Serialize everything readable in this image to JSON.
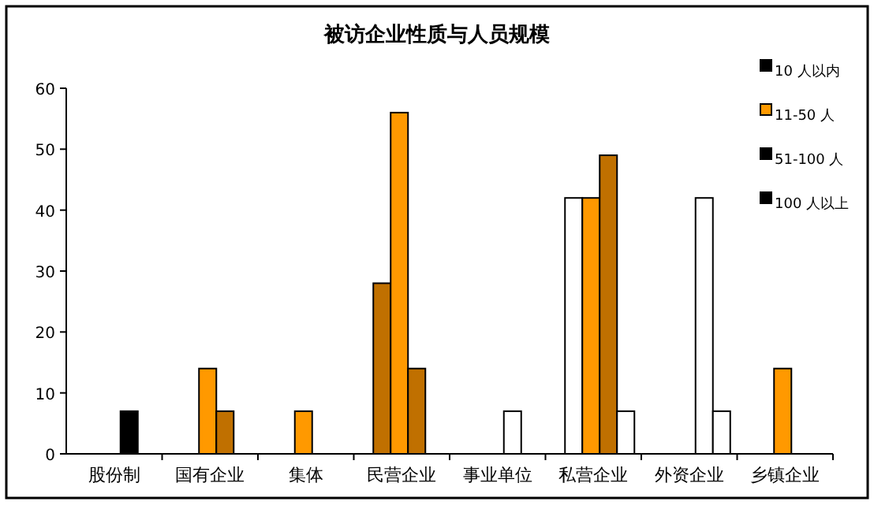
{
  "chart_data": {
    "type": "bar",
    "title": "被访企业性质与人员规模",
    "categories": [
      "股份制",
      "国有企业",
      "集体",
      "民营企业",
      "事业单位",
      "私营企业",
      "外资企业",
      "乡镇企业"
    ],
    "series": [
      {
        "name": "10 人以内",
        "color": "#000000",
        "colors": [
          null,
          null,
          null,
          "#c07000",
          null,
          "#ffffff",
          null,
          null
        ],
        "values": [
          null,
          null,
          null,
          28,
          null,
          42,
          null,
          null
        ]
      },
      {
        "name": "11-50 人",
        "color": "#ff9900",
        "colors": [
          null,
          "#ff9900",
          "#ff9900",
          "#ff9900",
          null,
          "#ff9900",
          null,
          "#ff9900"
        ],
        "values": [
          null,
          14,
          7,
          56,
          null,
          42,
          null,
          14
        ]
      },
      {
        "name": "51-100 人",
        "color": "#000000",
        "colors": [
          "#000000",
          "#c07000",
          null,
          "#c07000",
          "#ffffff",
          "#c07000",
          "#ffffff",
          null
        ],
        "values": [
          7,
          7,
          null,
          14,
          7,
          49,
          42,
          null
        ]
      },
      {
        "name": "100 人以上",
        "color": "#000000",
        "colors": [
          null,
          null,
          null,
          null,
          null,
          "#ffffff",
          "#ffffff",
          null
        ],
        "values": [
          null,
          null,
          null,
          null,
          null,
          7,
          7,
          null
        ]
      }
    ],
    "ylim": [
      0,
      60
    ],
    "yticks": [
      0,
      10,
      20,
      30,
      40,
      50,
      60
    ],
    "grid": false,
    "legend": "right"
  }
}
